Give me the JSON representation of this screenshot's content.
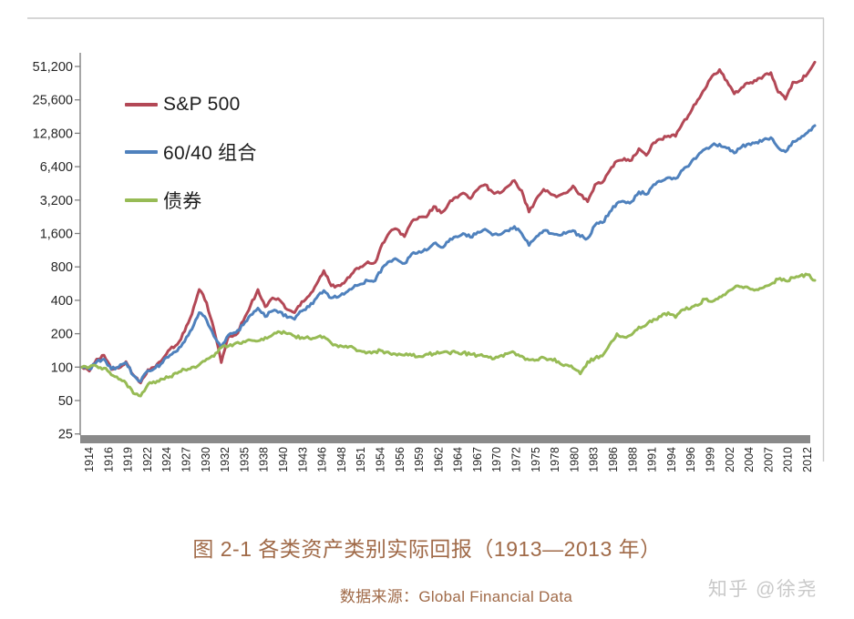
{
  "caption": {
    "text": "图 2-1 各类资产类别实际回报（1913—2013 年）"
  },
  "source": {
    "text": "数据来源：Global Financial Data"
  },
  "watermark": {
    "text": "知乎 @徐尧"
  },
  "colors": {
    "axis_line": "#7f7f7f",
    "axis_bar": "#8a8a8a",
    "frame_line": "#c9c9c9",
    "tick_text": "#262626",
    "caption_text": "#a06a48",
    "watermark_text": "#c9c9c9"
  },
  "chart_data": {
    "type": "line",
    "title": "图 2-1 各类资产类别实际回报（1913—2013 年）",
    "xlabel": "",
    "ylabel": "",
    "y_scale": "log2",
    "grid": false,
    "legend_position": "inside-top-left",
    "ylim": [
      25,
      51200
    ],
    "y_tick_labels": [
      "25",
      "50",
      "100",
      "200",
      "400",
      "800",
      "1,600",
      "3,200",
      "6,400",
      "12,800",
      "25,600",
      "51,200"
    ],
    "x_tick_labels": [
      "1914",
      "1916",
      "1919",
      "1922",
      "1924",
      "1927",
      "1930",
      "1932",
      "1935",
      "1938",
      "1940",
      "1943",
      "1946",
      "1948",
      "1951",
      "1954",
      "1956",
      "1959",
      "1962",
      "1964",
      "1967",
      "1970",
      "1972",
      "1975",
      "1978",
      "1980",
      "1983",
      "1986",
      "1988",
      "1991",
      "1994",
      "1996",
      "1999",
      "2002",
      "2004",
      "2007",
      "2010",
      "2012"
    ],
    "x_range": [
      1913,
      2013
    ],
    "x_step_years": 1,
    "series": [
      {
        "name": "S&P 500",
        "color": "#b34856",
        "values": [
          100,
          92,
          118,
          128,
          95,
          98,
          112,
          85,
          72,
          95,
          100,
          118,
          145,
          160,
          210,
          300,
          500,
          380,
          220,
          110,
          190,
          195,
          260,
          360,
          500,
          350,
          420,
          400,
          330,
          310,
          390,
          440,
          560,
          740,
          540,
          545,
          600,
          710,
          800,
          890,
          880,
          1300,
          1650,
          1750,
          1500,
          2050,
          2250,
          2250,
          2800,
          2450,
          2950,
          3400,
          3700,
          3300,
          4000,
          4400,
          3800,
          3700,
          4200,
          4800,
          3900,
          2500,
          3300,
          4000,
          3600,
          3500,
          3700,
          4300,
          3600,
          3100,
          4400,
          4600,
          5900,
          7200,
          7600,
          7300,
          9300,
          8100,
          10500,
          11300,
          12100,
          12000,
          16000,
          19500,
          25500,
          32000,
          42000,
          48000,
          38000,
          29000,
          33000,
          36000,
          38000,
          42000,
          45000,
          30000,
          26000,
          37000,
          38000,
          44000,
          56000
        ]
      },
      {
        "name": "60/40 组合",
        "color": "#4f81bd",
        "values": [
          100,
          96,
          112,
          118,
          96,
          100,
          110,
          84,
          74,
          93,
          98,
          110,
          128,
          140,
          170,
          220,
          310,
          265,
          190,
          150,
          195,
          205,
          240,
          295,
          340,
          285,
          320,
          315,
          280,
          270,
          320,
          350,
          420,
          490,
          420,
          430,
          470,
          520,
          560,
          600,
          600,
          790,
          900,
          930,
          860,
          1050,
          1100,
          1130,
          1300,
          1200,
          1350,
          1500,
          1600,
          1480,
          1650,
          1750,
          1550,
          1560,
          1700,
          1850,
          1600,
          1250,
          1500,
          1700,
          1600,
          1550,
          1600,
          1700,
          1500,
          1450,
          1900,
          2000,
          2500,
          3000,
          3100,
          3100,
          3800,
          3600,
          4400,
          4700,
          5100,
          5000,
          6000,
          6800,
          8000,
          9200,
          10000,
          10200,
          9400,
          8500,
          9600,
          10300,
          10600,
          11200,
          11700,
          9500,
          8700,
          10800,
          11500,
          13000,
          15000
        ]
      },
      {
        "name": "债券",
        "color": "#97bb55",
        "values": [
          100,
          100,
          102,
          98,
          85,
          78,
          72,
          58,
          55,
          70,
          72,
          78,
          82,
          88,
          95,
          100,
          105,
          118,
          125,
          150,
          155,
          165,
          170,
          175,
          172,
          185,
          195,
          207,
          200,
          190,
          185,
          182,
          185,
          188,
          165,
          152,
          155,
          150,
          140,
          136,
          138,
          140,
          133,
          128,
          128,
          127,
          125,
          131,
          132,
          135,
          135,
          136,
          135,
          130,
          128,
          125,
          118,
          126,
          132,
          135,
          126,
          116,
          116,
          122,
          118,
          112,
          105,
          98,
          87,
          112,
          120,
          126,
          160,
          200,
          186,
          196,
          230,
          240,
          270,
          285,
          310,
          280,
          330,
          335,
          360,
          410,
          390,
          430,
          470,
          520,
          530,
          515,
          500,
          520,
          560,
          620,
          600,
          640,
          665,
          680,
          605
        ]
      }
    ]
  }
}
